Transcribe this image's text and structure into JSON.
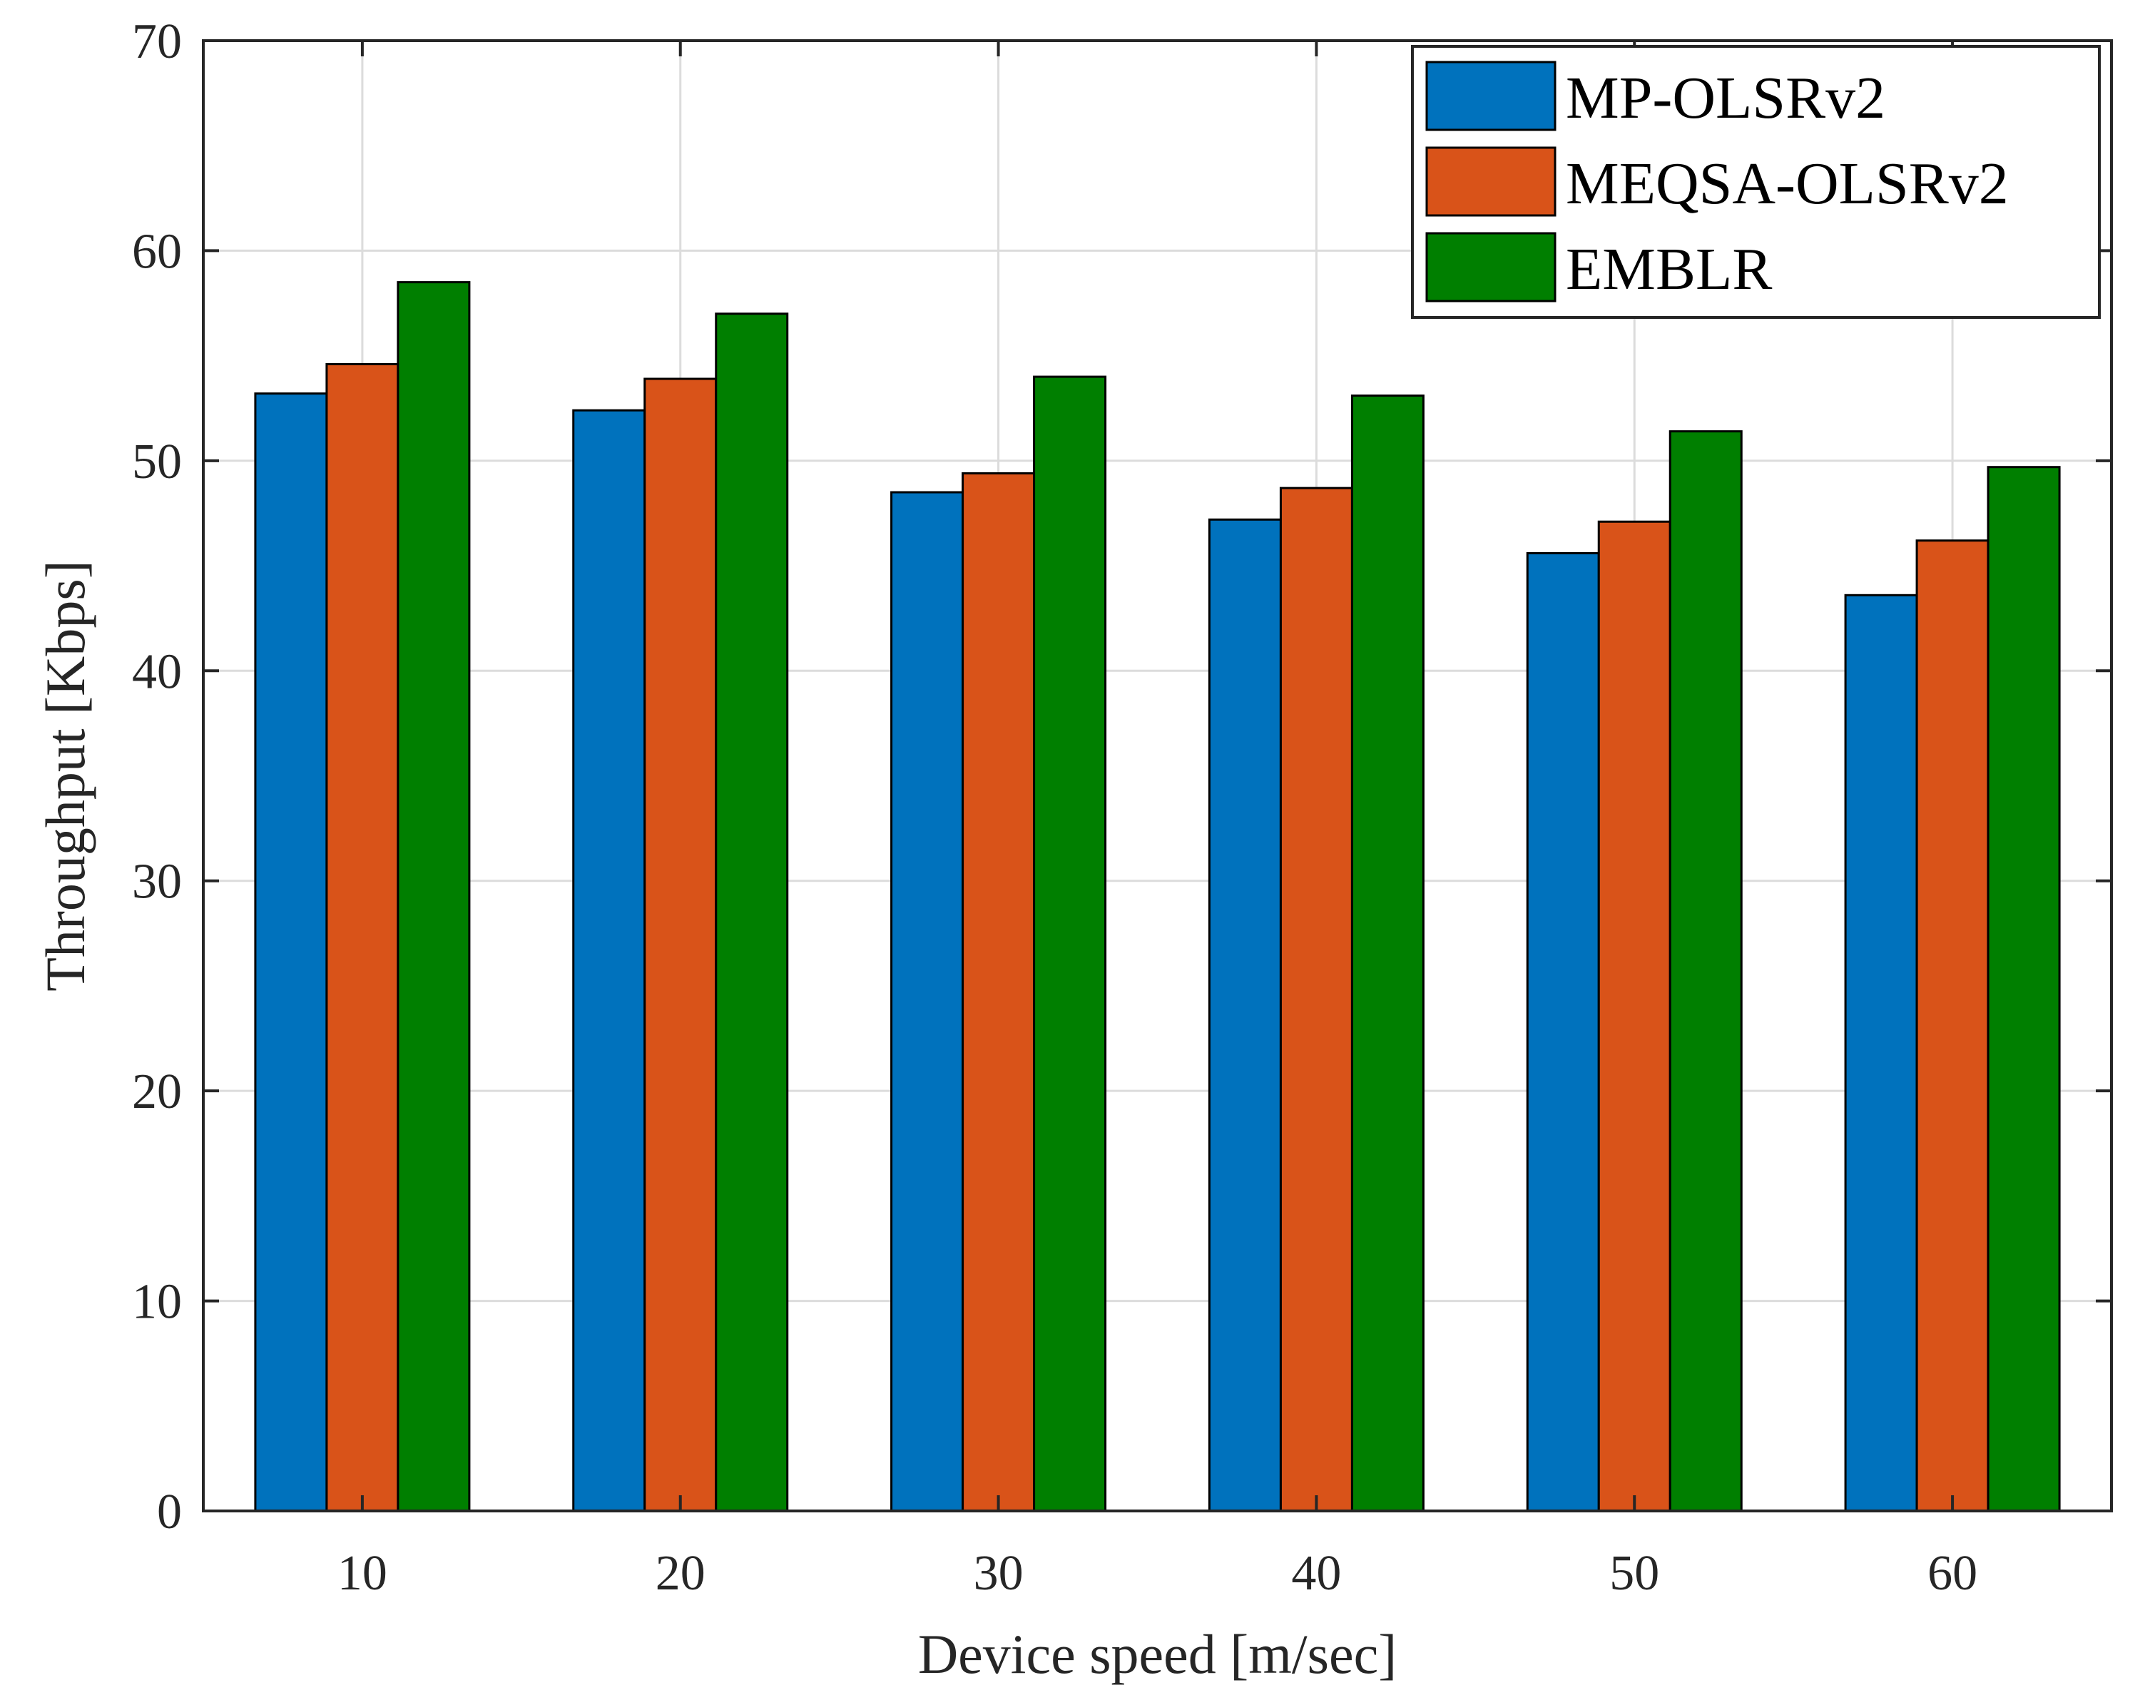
{
  "chart_data": {
    "type": "bar",
    "title": "",
    "xlabel": "Device speed [m/sec]",
    "ylabel": "Throughput [Kbps]",
    "categories": [
      "10",
      "20",
      "30",
      "40",
      "50",
      "60"
    ],
    "ylim": [
      0,
      70
    ],
    "yticks": [
      "0",
      "10",
      "20",
      "30",
      "40",
      "50",
      "60",
      "70"
    ],
    "grid": true,
    "legend_position": "top-right",
    "series": [
      {
        "name": "MP-OLSRv2",
        "color": "#0072BD",
        "values": [
          53.2,
          52.4,
          48.5,
          47.2,
          45.6,
          43.6
        ]
      },
      {
        "name": "MEQSA-OLSRv2",
        "color": "#D95319",
        "values": [
          54.6,
          53.9,
          49.4,
          48.7,
          47.1,
          46.2
        ]
      },
      {
        "name": "EMBLR",
        "color": "#007F00",
        "values": [
          58.5,
          57.0,
          54.0,
          53.1,
          51.4,
          49.7
        ]
      }
    ]
  }
}
